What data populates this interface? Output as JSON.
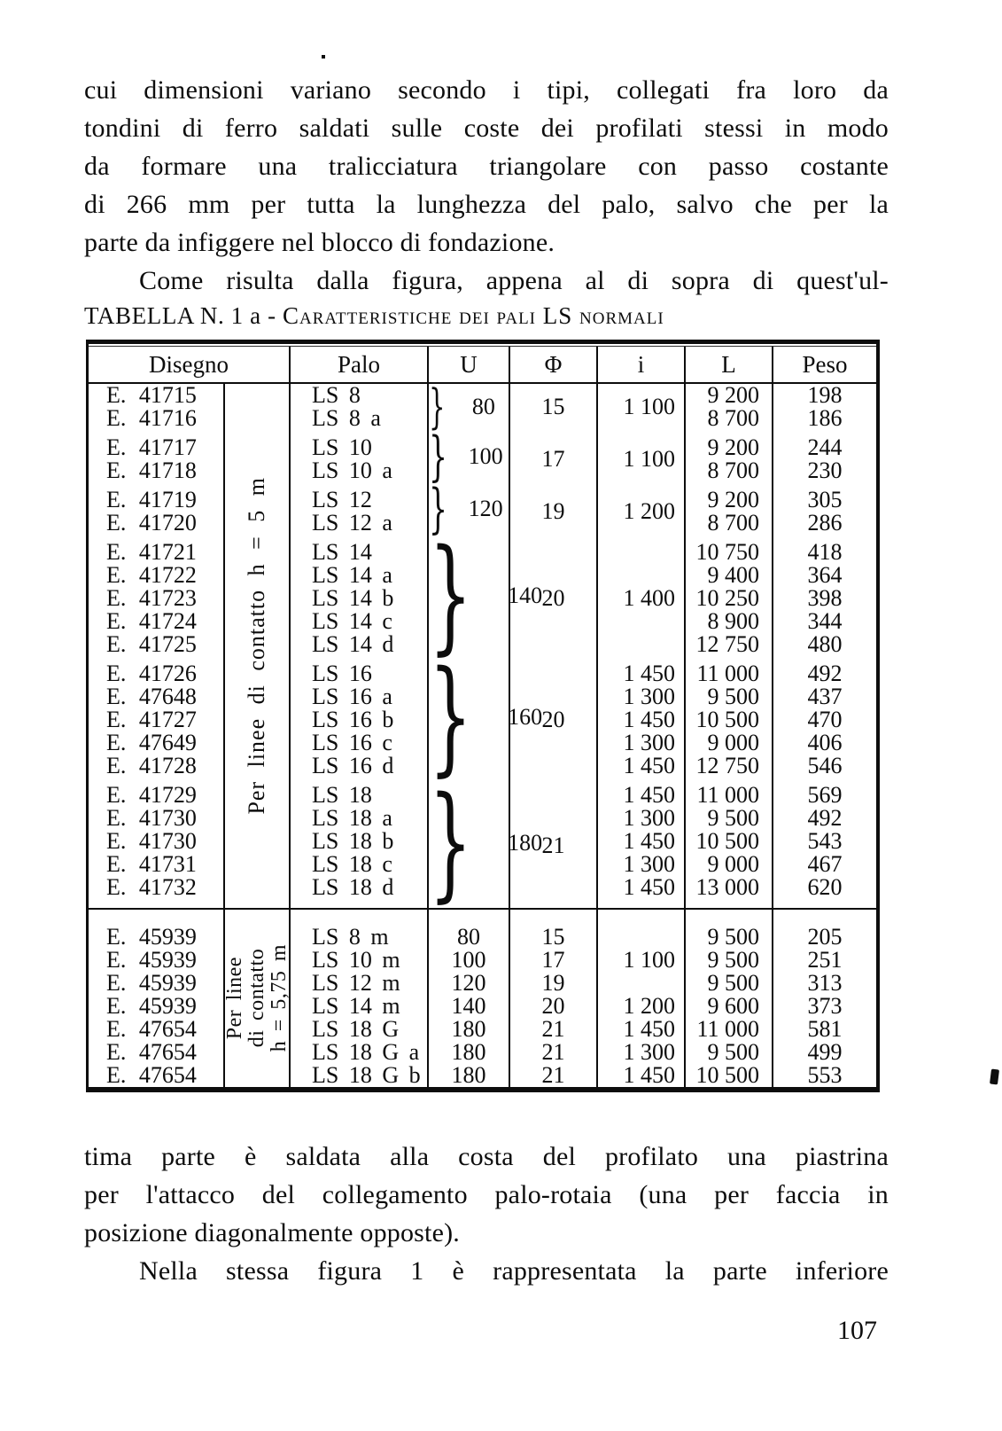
{
  "ink_color": "#0d0d0d",
  "page": {
    "number": "107"
  },
  "paragraph_top": {
    "lines": [
      {
        "t": "cui dimensioni variano secondo i tipi, collegati fra loro da",
        "j": true
      },
      {
        "t": "tondini di ferro saldati sulle coste dei profilati stessi in modo",
        "j": true
      },
      {
        "t": "da formare una tralicciatura triangolare con passo costante",
        "j": true
      },
      {
        "t": "di 266 mm per tutta la lunghezza del palo, salvo che per la",
        "j": true
      },
      {
        "t": "parte da infiggere nel blocco di fondazione.",
        "j": false
      },
      {
        "t": "Come risulta dalla figura, appena al di sopra di quest'ul-",
        "j": true,
        "ind": true
      }
    ]
  },
  "paragraph_bottom": {
    "lines": [
      {
        "t": "tima parte è saldata alla costa del profilato una piastrina",
        "j": true
      },
      {
        "t": "per l'attacco del collegamento palo-rotaia (una per faccia in",
        "j": true
      },
      {
        "t": "posizione diagonalmente opposte).",
        "j": false
      },
      {
        "t": "Nella stessa figura 1 è rappresentata la parte inferiore",
        "j": true,
        "ind": true
      }
    ]
  },
  "table": {
    "title_prefix": "TABELLA N. 1 a",
    "title_separator": "-",
    "title_main": "Caratteristiche dei pali LS normali",
    "headers": [
      "Disegno",
      "Palo",
      "U",
      "Φ",
      "i",
      "L",
      "Peso"
    ],
    "section1": {
      "side_label": "Per linee di contatto h = 5 m",
      "groups": [
        {
          "u": "80",
          "phi": "15",
          "i": "1 100",
          "rows": [
            {
              "d": "E. 41715",
              "p": "LS 8",
              "l": "9 200",
              "w": "198"
            },
            {
              "d": "E. 41716",
              "p": "LS 8 a",
              "l": "8 700",
              "w": "186"
            }
          ]
        },
        {
          "u": "100",
          "phi": "17",
          "i": "1 100",
          "rows": [
            {
              "d": "E. 41717",
              "p": "LS 10",
              "l": "9 200",
              "w": "244"
            },
            {
              "d": "E. 41718",
              "p": "LS 10 a",
              "l": "8 700",
              "w": "230"
            }
          ]
        },
        {
          "u": "120",
          "phi": "19",
          "i": "1 200",
          "rows": [
            {
              "d": "E. 41719",
              "p": "LS 12",
              "l": "9 200",
              "w": "305"
            },
            {
              "d": "E. 41720",
              "p": "LS 12 a",
              "l": "8 700",
              "w": "286"
            }
          ]
        },
        {
          "u": "140",
          "phi": "20",
          "i": "1 400",
          "rows": [
            {
              "d": "E. 41721",
              "p": "LS 14",
              "l": "10 750",
              "w": "418"
            },
            {
              "d": "E. 41722",
              "p": "LS 14 a",
              "l": "9 400",
              "w": "364"
            },
            {
              "d": "E. 41723",
              "p": "LS 14 b",
              "l": "10 250",
              "w": "398"
            },
            {
              "d": "E. 41724",
              "p": "LS 14 c",
              "l": "8 900",
              "w": "344"
            },
            {
              "d": "E. 41725",
              "p": "LS 14 d",
              "l": "12 750",
              "w": "480"
            }
          ]
        },
        {
          "u": "160",
          "phi": "20",
          "rows": [
            {
              "d": "E. 41726",
              "p": "LS 16",
              "i": "1 450",
              "l": "11 000",
              "w": "492"
            },
            {
              "d": "E. 47648",
              "p": "LS 16 a",
              "i": "1 300",
              "l": "9 500",
              "w": "437"
            },
            {
              "d": "E. 41727",
              "p": "LS 16 b",
              "i": "1 450",
              "l": "10 500",
              "w": "470"
            },
            {
              "d": "E. 47649",
              "p": "LS 16 c",
              "i": "1 300",
              "l": "9 000",
              "w": "406"
            },
            {
              "d": "E. 41728",
              "p": "LS 16 d",
              "i": "1 450",
              "l": "12 750",
              "w": "546"
            }
          ]
        },
        {
          "u": "180",
          "phi": "21",
          "rows": [
            {
              "d": "E. 41729",
              "p": "LS 18",
              "i": "1 450",
              "l": "11 000",
              "w": "569"
            },
            {
              "d": "E. 41730",
              "p": "LS 18 a",
              "i": "1 300",
              "l": "9 500",
              "w": "492"
            },
            {
              "d": "E. 41730",
              "p": "LS 18 b",
              "i": "1 450",
              "l": "10 500",
              "w": "543"
            },
            {
              "d": "E. 41731",
              "p": "LS 18 c",
              "i": "1 300",
              "l": "9 000",
              "w": "467"
            },
            {
              "d": "E. 41732",
              "p": "LS 18 d",
              "i": "1 450",
              "l": "13 000",
              "w": "620"
            }
          ]
        }
      ]
    },
    "section2": {
      "side_label_lines": [
        "Per linee",
        "di contatto",
        "h = 5,75 m"
      ],
      "rows": [
        {
          "d": "E. 45939",
          "p": "LS 8 m",
          "u": "80",
          "phi": "15",
          "i": "",
          "l": "9 500",
          "w": "205"
        },
        {
          "d": "E. 45939",
          "p": "LS 10 m",
          "u": "100",
          "phi": "17",
          "i": "1 100",
          "l": "9 500",
          "w": "251"
        },
        {
          "d": "E. 45939",
          "p": "LS 12 m",
          "u": "120",
          "phi": "19",
          "i": "",
          "l": "9 500",
          "w": "313"
        },
        {
          "d": "E. 45939",
          "p": "LS 14 m",
          "u": "140",
          "phi": "20",
          "i": "1 200",
          "l": "9 600",
          "w": "373"
        },
        {
          "d": "E. 47654",
          "p": "LS 18 G",
          "u": "180",
          "phi": "21",
          "i": "1 450",
          "l": "11 000",
          "w": "581"
        },
        {
          "d": "E. 47654",
          "p": "LS 18 G a",
          "u": "180",
          "phi": "21",
          "i": "1 300",
          "l": "9 500",
          "w": "499"
        },
        {
          "d": "E. 47654",
          "p": "LS 18 G b",
          "u": "180",
          "phi": "21",
          "i": "1 450",
          "l": "10 500",
          "w": "553"
        }
      ]
    }
  }
}
